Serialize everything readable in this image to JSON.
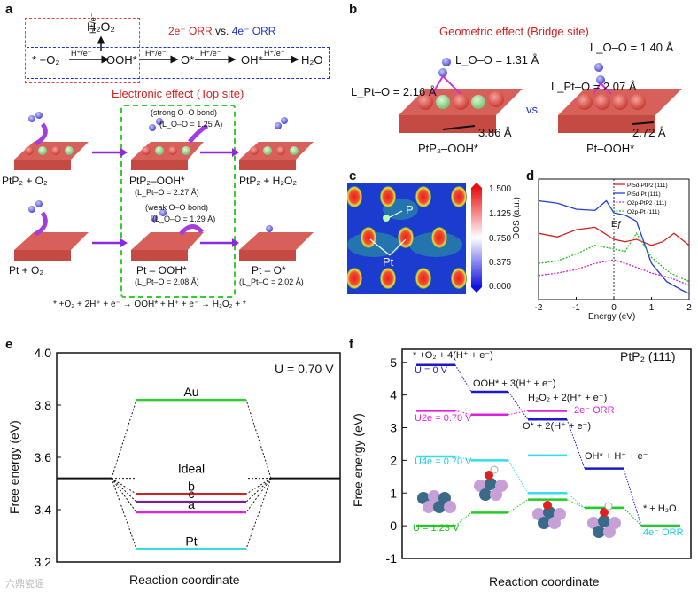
{
  "panels": {
    "a": "a",
    "b": "b",
    "c": "c",
    "d": "d",
    "e": "e",
    "f": "f"
  },
  "panel_a": {
    "orr_title_2e": "2e⁻ ORR",
    "orr_title_vs": "vs.",
    "orr_title_4e": "4e⁻ ORR",
    "h2o2": "H₂O₂",
    "scheme_start": "* +O₂",
    "step_label": "H⁺/e⁻",
    "ooh": "OOH*",
    "o": "O*",
    "oh": "OH*",
    "h2o": "H₂O",
    "electronic_title": "Electronic effect (Top site)",
    "row1": [
      "PtP₂ + O₂",
      "PtP₂–OOH*",
      "PtP₂ + H₂O₂"
    ],
    "row1_note": "(strong O–O bond)",
    "row1_bond": "(L_O–O = 1.25 Å)",
    "row1_ptlen": "(L_Pt–O = 2.27 Å)",
    "row2": [
      "Pt + O₂",
      "Pt – OOH*",
      "Pt – O*"
    ],
    "row2_note": "(weak O–O bond)",
    "row2_bond": "(L_O–O = 1.29 Å)",
    "row2_ptlen": "(L_Pt–O = 2.08 Å)",
    "row2_ptlen3": "(L_Pt–O = 2.02 Å)",
    "equation": "* +O₂ + 2H⁺ + e⁻ → OOH* + H⁺ + e⁻ → H₂O₂ + *"
  },
  "panel_b": {
    "title": "Geometric effect (Bridge site)",
    "lo_o_left": "L_O–O = 1.31 Å",
    "lpt_o_left": "L_Pt–O = 2.16 Å",
    "dist_left": "3.86 Å",
    "name_left": "PtP₂–OOH*",
    "vs": "vs.",
    "lo_o_right": "L_O–O = 1.40 Å",
    "lpt_o_right": "L_Pt–O = 2.07 Å",
    "dist_right": "2.72 Å",
    "name_right": "Pt–OOH*"
  },
  "panel_c": {
    "label_p": "P",
    "label_pt": "Pt",
    "colorbar_ticks": [
      "1.500",
      "1.125",
      "0.750",
      "0.375",
      "0.000"
    ]
  },
  "chart_data": [
    {
      "type": "line",
      "panel": "d",
      "xlabel": "Energy (eV)",
      "ylabel": "DOS (a.u.)",
      "xlim": [
        -2,
        2
      ],
      "xticks": [
        "-2",
        "-1",
        "0",
        "1",
        "2"
      ],
      "fermi_label": "Eƒ",
      "legend": [
        "Pt5d-PtP2 (111)",
        "Pt5d-Pt (111)",
        "O2p-PtP2 (111)",
        "O2p-Pt (111)"
      ],
      "legend_colors": [
        "#d42020",
        "#1f3fcf",
        "#d020d0",
        "#20c020"
      ],
      "series": [
        {
          "name": "Pt5d-PtP2 (111)",
          "x": [
            -2,
            -1.5,
            -1,
            -0.5,
            0,
            0.3,
            0.6,
            1,
            1.3,
            1.6,
            2
          ],
          "y": [
            0.55,
            0.52,
            0.58,
            0.6,
            0.5,
            0.48,
            0.5,
            0.45,
            0.48,
            0.55,
            0.45
          ]
        },
        {
          "name": "Pt5d-Pt (111)",
          "x": [
            -2,
            -1.5,
            -1,
            -0.5,
            -0.2,
            0,
            0.3,
            0.6,
            1,
            1.4,
            1.8,
            2
          ],
          "y": [
            0.82,
            0.8,
            0.75,
            0.74,
            0.82,
            0.72,
            0.7,
            0.65,
            0.3,
            0.15,
            0.08,
            0.05
          ]
        },
        {
          "name": "O2p-PtP2 (111)",
          "x": [
            -2,
            -1.5,
            -1,
            -0.5,
            0,
            0.5,
            1,
            1.5,
            2
          ],
          "y": [
            0.2,
            0.22,
            0.25,
            0.3,
            0.33,
            0.28,
            0.22,
            0.18,
            0.12
          ]
        },
        {
          "name": "O2p-Pt (111)",
          "x": [
            -2,
            -1.5,
            -1,
            -0.5,
            0,
            0.3,
            0.6,
            1,
            1.5,
            2
          ],
          "y": [
            0.3,
            0.32,
            0.38,
            0.45,
            0.42,
            0.4,
            0.55,
            0.35,
            0.22,
            0.15
          ]
        }
      ]
    },
    {
      "type": "line",
      "panel": "e",
      "title": "U = 0.70 V",
      "xlabel": "Reaction coordinate",
      "ylabel": "Free energy (eV)",
      "ylim": [
        3.2,
        4.0
      ],
      "yticks": [
        "3.2",
        "3.4",
        "3.6",
        "3.8",
        "4.0"
      ],
      "baseline": 3.52,
      "levels": [
        {
          "name": "Au",
          "value": 3.82,
          "color": "#33cc33"
        },
        {
          "name": "Ideal",
          "value": 3.52,
          "color": "#111111"
        },
        {
          "name": "b",
          "value": 3.46,
          "color": "#d42020"
        },
        {
          "name": "c",
          "value": 3.43,
          "color": "#7a1f9a"
        },
        {
          "name": "a",
          "value": 3.39,
          "color": "#e020e0"
        },
        {
          "name": "Pt",
          "value": 3.25,
          "color": "#33dddd"
        }
      ]
    },
    {
      "type": "line",
      "panel": "f",
      "title": "PtP₂ (111)",
      "xlabel": "Reaction coordinate",
      "ylabel": "Free energy (eV)",
      "ylim": [
        -1,
        5.4
      ],
      "yticks": [
        "5",
        "4",
        "3",
        "2",
        "1",
        "0",
        "-1"
      ],
      "steps": [
        "* +O₂ + 4(H⁺ + e⁻)",
        "OOH* + 3(H⁺ + e⁻)",
        "H₂O₂ + 2(H⁺ + e⁻)",
        "O* + 2(H⁺ + e⁻)",
        "OH* + H⁺ + e⁻",
        "* + H₂O"
      ],
      "series": [
        {
          "name": "U = 0 V",
          "color": "#1a1acc",
          "values": [
            4.92,
            4.1,
            3.52,
            3.25,
            1.75,
            0.0
          ]
        },
        {
          "name": "U2e = 0.70 V",
          "color": "#e020e0",
          "values": [
            3.52,
            3.4,
            3.52
          ]
        },
        {
          "name": "U4e = 0.70 V",
          "color": "#33ddee",
          "values": [
            2.12,
            2.0,
            2.15,
            1.0,
            0.55,
            0.0
          ]
        },
        {
          "name": "U = 1.23 V",
          "color": "#22cc22",
          "values": [
            0.0,
            0.4,
            0.8,
            0.55,
            0.0
          ]
        }
      ],
      "annotations": {
        "u0": "U = 0 V",
        "u2e": "U2e = 0.70 V",
        "u4e": "U4e = 0.70 V",
        "u123": "U = 1.23 V",
        "orr2e": "2e⁻ ORR",
        "orr4e": "4e⁻ ORR"
      }
    }
  ],
  "watermark": "六鼎瓷谣"
}
